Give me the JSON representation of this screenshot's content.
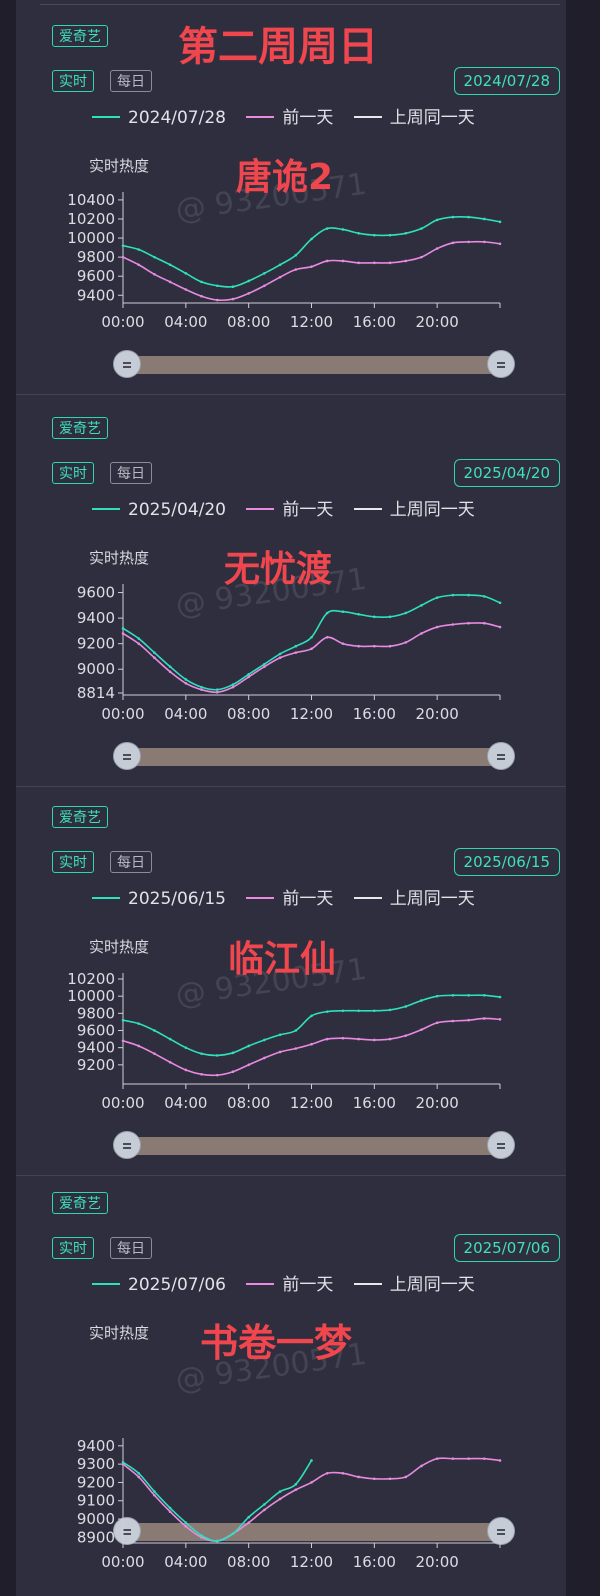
{
  "page_heading": "第二周周日",
  "watermark": "@ 93200571",
  "common": {
    "platform": "爱奇艺",
    "realtime_tab": "实时",
    "daily_tab": "每日",
    "legend_prev_day": "前一天",
    "legend_last_week": "上周同一天",
    "y_axis_label": "实时热度",
    "colors": {
      "current": "#2ee0bc",
      "prev_day": "#e88ae0",
      "last_week": "#e8e8ea",
      "title": "#f0464e"
    }
  },
  "chart_data": [
    {
      "type": "line",
      "show_title": "唐诡2",
      "date": "2024/07/28",
      "x_ticks": [
        "00:00",
        "04:00",
        "08:00",
        "12:00",
        "16:00",
        "20:00"
      ],
      "y_ticks": [
        9400,
        9600,
        9800,
        10000,
        10200,
        10400
      ],
      "ylim": [
        9340,
        10420
      ],
      "series": [
        {
          "name": "2024/07/28",
          "x": [
            0,
            1,
            2,
            3,
            4,
            5,
            6,
            7,
            8,
            9,
            10,
            11,
            12,
            13,
            14,
            15,
            16,
            17,
            18,
            19,
            20,
            21,
            22,
            23,
            24
          ],
          "values": [
            9920,
            9880,
            9800,
            9720,
            9630,
            9540,
            9500,
            9490,
            9550,
            9630,
            9720,
            9820,
            9990,
            10100,
            10090,
            10050,
            10030,
            10030,
            10050,
            10100,
            10190,
            10220,
            10220,
            10200,
            10170
          ]
        },
        {
          "name": "前一天",
          "x": [
            0,
            1,
            2,
            3,
            4,
            5,
            6,
            7,
            8,
            9,
            10,
            11,
            12,
            13,
            14,
            15,
            16,
            17,
            18,
            19,
            20,
            21,
            22,
            23,
            24
          ],
          "values": [
            9800,
            9720,
            9620,
            9540,
            9460,
            9390,
            9350,
            9360,
            9420,
            9500,
            9590,
            9670,
            9700,
            9760,
            9760,
            9740,
            9740,
            9740,
            9760,
            9800,
            9890,
            9950,
            9960,
            9960,
            9940
          ]
        }
      ]
    },
    {
      "type": "line",
      "show_title": "无忧渡",
      "date": "2025/04/20",
      "x_ticks": [
        "00:00",
        "04:00",
        "08:00",
        "12:00",
        "16:00",
        "20:00"
      ],
      "y_ticks": [
        8814,
        9000,
        9200,
        9400,
        9600
      ],
      "ylim": [
        8814,
        9620
      ],
      "series": [
        {
          "name": "2025/04/20",
          "x": [
            0,
            1,
            2,
            3,
            4,
            5,
            6,
            7,
            8,
            9,
            10,
            11,
            12,
            13,
            14,
            15,
            16,
            17,
            18,
            19,
            20,
            21,
            22,
            23,
            24
          ],
          "values": [
            9320,
            9240,
            9130,
            9020,
            8920,
            8860,
            8840,
            8880,
            8960,
            9040,
            9120,
            9180,
            9250,
            9440,
            9450,
            9430,
            9410,
            9410,
            9440,
            9500,
            9560,
            9580,
            9580,
            9570,
            9520
          ]
        },
        {
          "name": "前一天",
          "x": [
            0,
            1,
            2,
            3,
            4,
            5,
            6,
            7,
            8,
            9,
            10,
            11,
            12,
            13,
            14,
            15,
            16,
            17,
            18,
            19,
            20,
            21,
            22,
            23,
            24
          ],
          "values": [
            9280,
            9200,
            9090,
            8980,
            8890,
            8840,
            8820,
            8860,
            8940,
            9020,
            9090,
            9130,
            9160,
            9250,
            9200,
            9180,
            9180,
            9180,
            9210,
            9280,
            9330,
            9350,
            9360,
            9360,
            9330
          ]
        }
      ]
    },
    {
      "type": "line",
      "show_title": "临江仙",
      "date": "2025/06/15",
      "x_ticks": [
        "00:00",
        "04:00",
        "08:00",
        "12:00",
        "16:00",
        "20:00"
      ],
      "y_ticks": [
        9200,
        9400,
        9600,
        9800,
        10000,
        10200
      ],
      "ylim": [
        9000,
        10200
      ],
      "series": [
        {
          "name": "2025/06/15",
          "x": [
            0,
            1,
            2,
            3,
            4,
            5,
            6,
            7,
            8,
            9,
            10,
            11,
            12,
            13,
            14,
            15,
            16,
            17,
            18,
            19,
            20,
            21,
            22,
            23,
            24
          ],
          "values": [
            9720,
            9680,
            9600,
            9500,
            9400,
            9330,
            9310,
            9340,
            9420,
            9490,
            9550,
            9600,
            9770,
            9820,
            9830,
            9830,
            9830,
            9840,
            9880,
            9950,
            10000,
            10010,
            10010,
            10010,
            9990
          ]
        },
        {
          "name": "前一天",
          "x": [
            0,
            1,
            2,
            3,
            4,
            5,
            6,
            7,
            8,
            9,
            10,
            11,
            12,
            13,
            14,
            15,
            16,
            17,
            18,
            19,
            20,
            21,
            22,
            23,
            24
          ],
          "values": [
            9480,
            9420,
            9330,
            9230,
            9140,
            9090,
            9080,
            9120,
            9200,
            9280,
            9350,
            9390,
            9440,
            9500,
            9510,
            9500,
            9490,
            9500,
            9540,
            9610,
            9690,
            9710,
            9720,
            9740,
            9730
          ]
        }
      ]
    },
    {
      "type": "line",
      "show_title": "书卷一梦",
      "date": "2025/07/06",
      "x_ticks": [
        "00:00",
        "04:00",
        "08:00",
        "12:00",
        "16:00",
        "20:00"
      ],
      "y_ticks": [
        8900,
        9000,
        9100,
        9200,
        9300,
        9400
      ],
      "ylim": [
        8880,
        9410
      ],
      "series": [
        {
          "name": "2025/07/06",
          "x": [
            0,
            1,
            2,
            3,
            4,
            5,
            6,
            7,
            8,
            9,
            10,
            11,
            12
          ],
          "values": [
            9310,
            9250,
            9150,
            9060,
            8980,
            8910,
            8880,
            8920,
            9010,
            9080,
            9150,
            9190,
            9320
          ]
        },
        {
          "name": "前一天",
          "x": [
            0,
            1,
            2,
            3,
            4,
            5,
            6,
            7,
            8,
            9,
            10,
            11,
            12,
            13,
            14,
            15,
            16,
            17,
            18,
            19,
            20,
            21,
            22,
            23,
            24
          ],
          "values": [
            9300,
            9230,
            9130,
            9040,
            8960,
            8900,
            8880,
            8920,
            8980,
            9050,
            9110,
            9160,
            9200,
            9250,
            9250,
            9230,
            9220,
            9220,
            9230,
            9290,
            9330,
            9330,
            9330,
            9330,
            9320
          ]
        }
      ]
    }
  ]
}
